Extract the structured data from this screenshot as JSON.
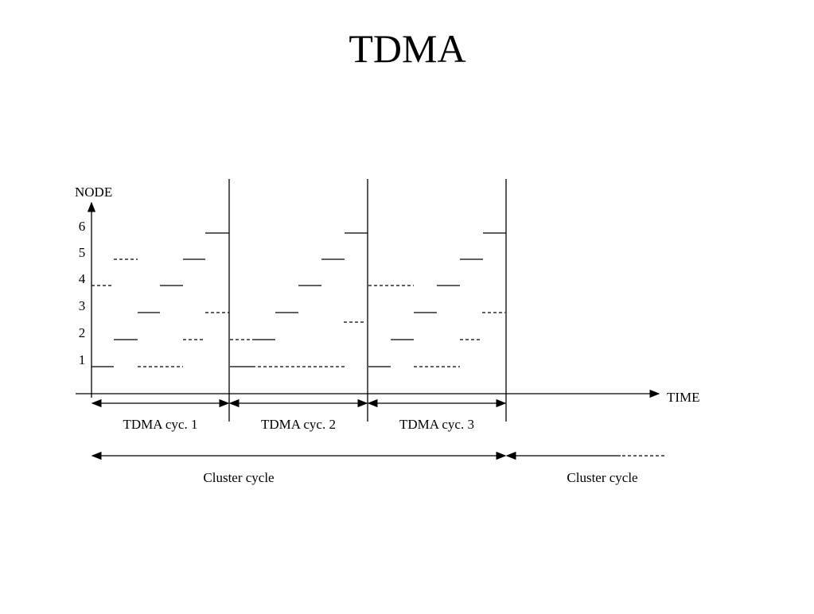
{
  "title": "TDMA",
  "axes": {
    "y_label": "NODE",
    "x_label": "TIME",
    "node_labels": [
      "6",
      "5",
      "4",
      "3",
      "2",
      "1"
    ]
  },
  "cycles": [
    "TDMA cyc. 1",
    "TDMA cyc. 2",
    "TDMA cyc. 3"
  ],
  "cluster_cycles": [
    "Cluster cycle",
    "Cluster cycle"
  ]
}
